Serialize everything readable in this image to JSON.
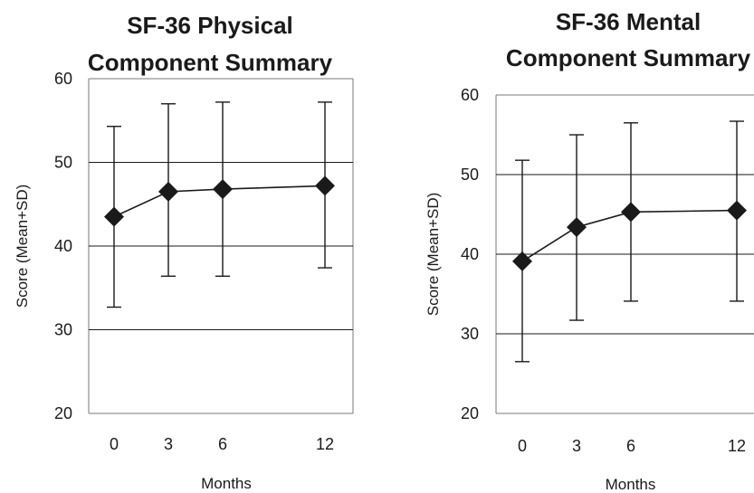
{
  "chart_data": [
    {
      "type": "line",
      "title_lines": [
        "SF-36 Physical",
        "Component Summary"
      ],
      "xlabel": "Months",
      "ylabel": "Score (Mean+SD)",
      "x": [
        0,
        3,
        6,
        12
      ],
      "x_ticks": [
        "0",
        "3",
        "6",
        "12"
      ],
      "y_ticks": [
        "20",
        "30",
        "40",
        "50",
        "60"
      ],
      "ylim": [
        20,
        60
      ],
      "grid_y": [
        30,
        40,
        50
      ],
      "values": [
        43.5,
        46.5,
        46.8,
        47.2
      ],
      "error_high": [
        54.3,
        57.0,
        57.2,
        57.2
      ],
      "error_low": [
        32.7,
        36.4,
        36.4,
        37.4
      ],
      "marker": "diamond",
      "color": "#1a1a1a"
    },
    {
      "type": "line",
      "title_lines": [
        "SF-36 Mental",
        "Component Summary"
      ],
      "xlabel": "Months",
      "ylabel": "Score (Mean+SD)",
      "x": [
        0,
        3,
        6,
        12
      ],
      "x_ticks": [
        "0",
        "3",
        "6",
        "12"
      ],
      "y_ticks": [
        "20",
        "30",
        "40",
        "50",
        "60"
      ],
      "ylim": [
        20,
        60
      ],
      "grid_y": [
        30,
        40,
        50
      ],
      "values": [
        39.1,
        43.4,
        45.3,
        45.5
      ],
      "error_high": [
        51.8,
        55.0,
        56.5,
        56.7
      ],
      "error_low": [
        26.5,
        31.7,
        34.1,
        34.1
      ],
      "marker": "diamond",
      "color": "#1a1a1a"
    }
  ]
}
